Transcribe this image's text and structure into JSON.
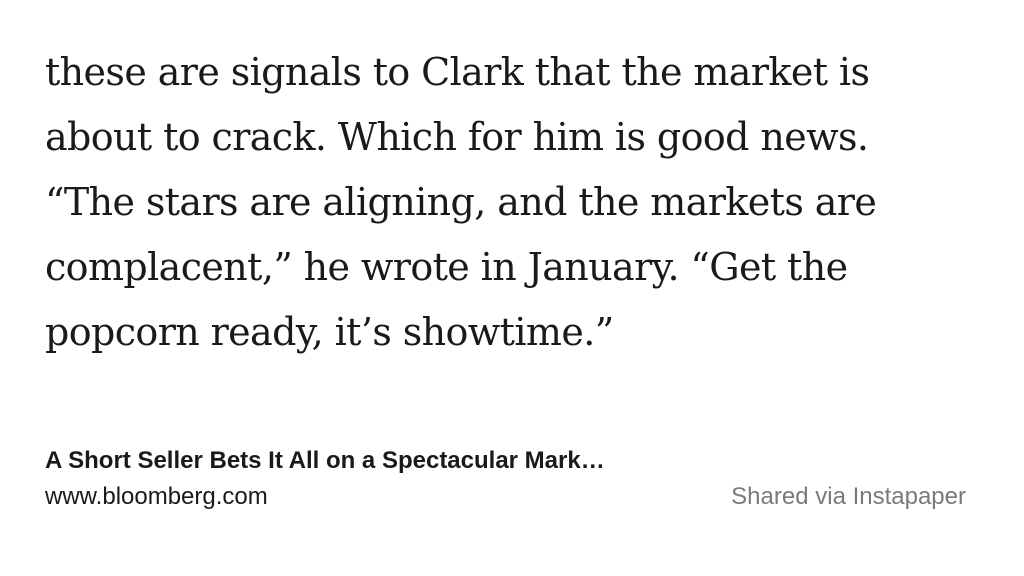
{
  "quote": {
    "lines": [
      "these are signals to Clark that the market is",
      "about to crack. Which for him is good news.",
      "“The stars are aligning, and the markets are",
      "complacent,” he wrote in January. “Get the",
      "popcorn ready, it’s showtime.”"
    ]
  },
  "footer": {
    "article_title": "A Short Seller Bets It All on a Spectacular Mark…",
    "source_domain": "www.bloomberg.com",
    "shared_via": "Shared via Instapaper"
  }
}
